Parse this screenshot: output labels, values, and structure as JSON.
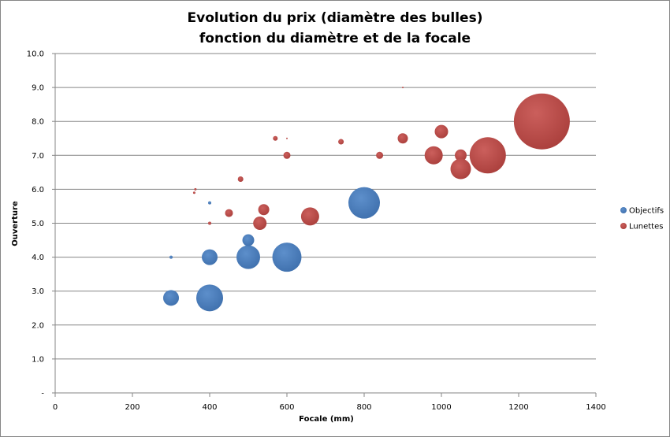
{
  "chart_data": {
    "type": "bubble",
    "title": [
      "Evolution du prix  (diamètre des bulles)",
      "fonction du diamètre et de la focale"
    ],
    "xlabel": "Focale (mm)",
    "ylabel": "Ouverture",
    "xlim": [
      0,
      1400
    ],
    "ylim": [
      0,
      10
    ],
    "x_ticks": [
      "0",
      "200",
      "400",
      "600",
      "800",
      "1000",
      "1200",
      "1400"
    ],
    "y_ticks": [
      "-",
      "1.0",
      "2.0",
      "3.0",
      "4.0",
      "5.0",
      "6.0",
      "7.0",
      "8.0",
      "9.0",
      "10.0"
    ],
    "grid": "horizontal",
    "legend_position": "right",
    "series": [
      {
        "name": "Objectifs",
        "color": "#4f81bd",
        "points": [
          {
            "x": 300,
            "y": 2.8,
            "size": 20
          },
          {
            "x": 400,
            "y": 2.8,
            "size": 34
          },
          {
            "x": 300,
            "y": 4.0,
            "size": 4
          },
          {
            "x": 400,
            "y": 4.0,
            "size": 20
          },
          {
            "x": 500,
            "y": 4.0,
            "size": 30
          },
          {
            "x": 600,
            "y": 4.0,
            "size": 37
          },
          {
            "x": 500,
            "y": 4.5,
            "size": 15
          },
          {
            "x": 400,
            "y": 5.6,
            "size": 4
          },
          {
            "x": 800,
            "y": 5.6,
            "size": 40
          }
        ]
      },
      {
        "name": "Lunettes",
        "color": "#c0504d",
        "points": [
          {
            "x": 400,
            "y": 5.0,
            "size": 4
          },
          {
            "x": 530,
            "y": 5.0,
            "size": 17
          },
          {
            "x": 450,
            "y": 5.3,
            "size": 10
          },
          {
            "x": 540,
            "y": 5.4,
            "size": 14
          },
          {
            "x": 660,
            "y": 5.2,
            "size": 23
          },
          {
            "x": 360,
            "y": 5.9,
            "size": 3
          },
          {
            "x": 363,
            "y": 6.0,
            "size": 3
          },
          {
            "x": 480,
            "y": 6.3,
            "size": 7
          },
          {
            "x": 600,
            "y": 7.0,
            "size": 9
          },
          {
            "x": 570,
            "y": 7.5,
            "size": 6
          },
          {
            "x": 600,
            "y": 7.5,
            "size": 2
          },
          {
            "x": 740,
            "y": 7.4,
            "size": 7
          },
          {
            "x": 840,
            "y": 7.0,
            "size": 9
          },
          {
            "x": 900,
            "y": 7.5,
            "size": 13
          },
          {
            "x": 900,
            "y": 9.0,
            "size": 2
          },
          {
            "x": 1000,
            "y": 7.7,
            "size": 17
          },
          {
            "x": 980,
            "y": 7.0,
            "size": 23
          },
          {
            "x": 1050,
            "y": 7.0,
            "size": 15
          },
          {
            "x": 1050,
            "y": 6.6,
            "size": 26
          },
          {
            "x": 1120,
            "y": 7.0,
            "size": 46
          },
          {
            "x": 1260,
            "y": 8.0,
            "size": 71
          }
        ]
      }
    ]
  }
}
